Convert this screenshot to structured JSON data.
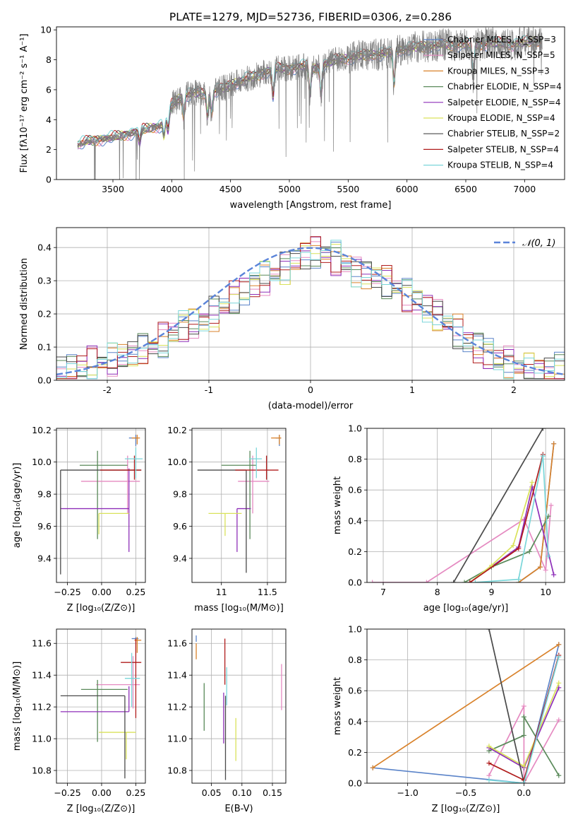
{
  "title": "PLATE=1279, MJD=52736, FIBERID=0306, z=0.286",
  "colors": {
    "Chabrier MILES": "#5b84c9",
    "Salpeter MILES": "#e58ac1",
    "Kroupa MILES": "#d9822b",
    "Chabrier ELODIE": "#5a8a5a",
    "Salpeter ELODIE": "#8e2fb8",
    "Kroupa ELODIE": "#d9e25a",
    "Chabrier STELIB": "#4a4a4a",
    "Salpeter STELIB": "#b01c1c",
    "Kroupa STELIB": "#7ad6d9",
    "data": "#808080",
    "normal": "#5b84d9"
  },
  "chart_data": [
    {
      "id": "spectrum",
      "type": "line",
      "xlabel": "wavelength [Angstrom, rest frame]",
      "ylabel": "Flux [fλ10⁻¹⁷ erg cm⁻² s⁻¹ A⁻¹]",
      "xlim": [
        3020,
        7340
      ],
      "ylim": [
        0,
        10.2
      ],
      "xticks": [
        3500,
        4000,
        4500,
        5000,
        5500,
        6000,
        6500,
        7000
      ],
      "yticks": [
        0,
        2,
        4,
        6,
        8,
        10
      ],
      "legend_position": "top-right",
      "legend": [
        "Chabrier MILES, N_SSP=3",
        "Salpeter MILES, N_SSP=5",
        "Kroupa MILES, N_SSP=3",
        "Chabrier ELODIE, N_SSP=4",
        "Salpeter ELODIE, N_SSP=4",
        "Kroupa ELODIE, N_SSP=4",
        "Chabrier STELIB, N_SSP=2",
        "Salpeter STELIB, N_SSP=4",
        "Kroupa STELIB, N_SSP=4"
      ],
      "continuum": {
        "x": [
          3200,
          3300,
          3400,
          3500,
          3600,
          3700,
          3800,
          3900,
          3950,
          4000,
          4100,
          4200,
          4300,
          4400,
          4500,
          4600,
          4700,
          4800,
          4900,
          5000,
          5100,
          5200,
          5300,
          5400,
          5500,
          5600,
          5700,
          5800,
          5900,
          6000,
          6100,
          6200,
          6300,
          6400,
          6500,
          6600,
          6700,
          6800,
          6900,
          7000,
          7150
        ],
        "y": [
          2.3,
          2.6,
          2.7,
          2.8,
          3.0,
          3.2,
          3.4,
          3.6,
          4.0,
          5.0,
          5.6,
          5.8,
          5.7,
          6.0,
          6.3,
          6.6,
          6.9,
          7.2,
          7.4,
          7.4,
          7.6,
          7.4,
          7.7,
          8.0,
          8.1,
          8.3,
          8.3,
          8.4,
          8.6,
          8.7,
          8.9,
          8.9,
          9.0,
          9.0,
          9.0,
          9.0,
          9.1,
          9.1,
          9.0,
          9.2,
          9.2
        ]
      }
    },
    {
      "id": "residuals",
      "type": "histogram",
      "xlabel": "(data-model)/error",
      "ylabel": "Normed distribution",
      "xlim": [
        -2.5,
        2.5
      ],
      "ylim": [
        0,
        0.46
      ],
      "xticks": [
        -2,
        -1,
        0,
        1,
        2
      ],
      "yticks": [
        0.0,
        0.1,
        0.2,
        0.3,
        0.4
      ],
      "legend": [
        "𝒩(0, 1)"
      ],
      "reference": {
        "name": "N(0,1)",
        "mean": 0,
        "sigma": 1
      },
      "bin_edges_start": -2.5,
      "bin_width": 0.1,
      "envelope": [
        0.02,
        0.03,
        0.04,
        0.05,
        0.055,
        0.06,
        0.07,
        0.08,
        0.09,
        0.1,
        0.12,
        0.14,
        0.16,
        0.17,
        0.18,
        0.2,
        0.22,
        0.25,
        0.27,
        0.29,
        0.31,
        0.32,
        0.34,
        0.36,
        0.38,
        0.39,
        0.38,
        0.37,
        0.35,
        0.33,
        0.32,
        0.31,
        0.3,
        0.28,
        0.26,
        0.24,
        0.22,
        0.2,
        0.17,
        0.15,
        0.12,
        0.1,
        0.08,
        0.06,
        0.05,
        0.04,
        0.035,
        0.03,
        0.03,
        0.03
      ]
    },
    {
      "id": "age-vs-Z",
      "type": "scatter",
      "xlabel": "Z [log₁₀(Z/Z⊙)]",
      "ylabel": "age  [log₁₀(age/yr)]",
      "xlim": [
        -0.33,
        0.32
      ],
      "ylim": [
        9.25,
        10.21
      ],
      "xticks": [
        -0.25,
        0.0,
        0.25
      ],
      "xticklabels": [
        "−0.25",
        "0.00",
        "0.25"
      ],
      "yticks": [
        9.4,
        9.6,
        9.8,
        10.0,
        10.2
      ],
      "points": [
        {
          "model": "Chabrier MILES",
          "x": 0.25,
          "y": 10.15,
          "xerr": [
            0.05,
            0.02
          ],
          "yerr": [
            0.05,
            0.02
          ]
        },
        {
          "model": "Salpeter MILES",
          "x": 0.19,
          "y": 9.88,
          "xerr": [
            0.34,
            0.09
          ],
          "yerr": [
            0.2,
            0.16
          ]
        },
        {
          "model": "Kroupa MILES",
          "x": 0.26,
          "y": 10.15,
          "xerr": [
            0.04,
            0.02
          ],
          "yerr": [
            0.04,
            0.02
          ]
        },
        {
          "model": "Chabrier ELODIE",
          "x": -0.03,
          "y": 9.98,
          "xerr": [
            0.13,
            0.22
          ],
          "yerr": [
            0.46,
            0.09
          ]
        },
        {
          "model": "Salpeter ELODIE",
          "x": 0.2,
          "y": 9.71,
          "xerr": [
            0.5,
            0.0
          ],
          "yerr": [
            0.27,
            0.25
          ]
        },
        {
          "model": "Kroupa ELODIE",
          "x": -0.02,
          "y": 9.68,
          "xerr": [
            0.0,
            0.22
          ],
          "yerr": [
            0.13,
            0.0
          ]
        },
        {
          "model": "Chabrier STELIB",
          "x": -0.3,
          "y": 9.95,
          "xerr": [
            0.0,
            0.59
          ],
          "yerr": [
            0.65,
            0.0
          ]
        },
        {
          "model": "Salpeter STELIB",
          "x": 0.24,
          "y": 9.95,
          "xerr": [
            0.25,
            0.05
          ],
          "yerr": [
            0.06,
            0.09
          ]
        },
        {
          "model": "Kroupa STELIB",
          "x": 0.25,
          "y": 10.02,
          "xerr": [
            0.08,
            0.05
          ],
          "yerr": [
            0.12,
            0.07
          ]
        }
      ]
    },
    {
      "id": "age-vs-mass",
      "type": "scatter",
      "xlabel": "mass [log₁₀(M/M⊙)]",
      "ylabel": "",
      "xlim": [
        10.68,
        11.7
      ],
      "ylim": [
        9.25,
        10.21
      ],
      "xticks": [
        11.0,
        11.5
      ],
      "yticks": [
        9.4,
        9.6,
        9.8,
        10.0,
        10.2
      ],
      "points": [
        {
          "model": "Chabrier MILES",
          "x": 11.63,
          "y": 10.15,
          "xerr": [
            0.04,
            0.02
          ],
          "yerr": [
            0.05,
            0.02
          ]
        },
        {
          "model": "Salpeter MILES",
          "x": 11.34,
          "y": 9.88,
          "xerr": [
            0.16,
            0.18
          ],
          "yerr": [
            0.2,
            0.16
          ]
        },
        {
          "model": "Kroupa MILES",
          "x": 11.63,
          "y": 10.15,
          "xerr": [
            0.09,
            0.02
          ],
          "yerr": [
            0.04,
            0.02
          ]
        },
        {
          "model": "Chabrier ELODIE",
          "x": 11.31,
          "y": 9.98,
          "xerr": [
            0.31,
            0.07
          ],
          "yerr": [
            0.46,
            0.09
          ]
        },
        {
          "model": "Salpeter ELODIE",
          "x": 11.17,
          "y": 9.71,
          "xerr": [
            0.0,
            0.15
          ],
          "yerr": [
            0.27,
            0.0
          ]
        },
        {
          "model": "Kroupa ELODIE",
          "x": 11.04,
          "y": 9.68,
          "xerr": [
            0.18,
            0.18
          ],
          "yerr": [
            0.14,
            0.0
          ]
        },
        {
          "model": "Chabrier STELIB",
          "x": 11.27,
          "y": 9.95,
          "xerr": [
            0.53,
            0.0
          ],
          "yerr": [
            0.64,
            0.0
          ]
        },
        {
          "model": "Salpeter STELIB",
          "x": 11.49,
          "y": 9.95,
          "xerr": [
            0.34,
            0.13
          ],
          "yerr": [
            0.06,
            0.09
          ]
        },
        {
          "model": "Kroupa STELIB",
          "x": 11.38,
          "y": 10.02,
          "xerr": [
            0.08,
            0.06
          ],
          "yerr": [
            0.12,
            0.07
          ]
        }
      ]
    },
    {
      "id": "weight-vs-age",
      "type": "line",
      "xlabel": "age  [log₁₀(age/yr)]",
      "ylabel": "mass weight",
      "xlim": [
        6.7,
        10.35
      ],
      "ylim": [
        0,
        1
      ],
      "xticks": [
        7,
        8,
        9,
        10
      ],
      "yticks": [
        0.0,
        0.2,
        0.4,
        0.6,
        0.8,
        1.0
      ],
      "series": [
        {
          "model": "Chabrier MILES",
          "x": [
            9.5,
            9.9,
            10.15
          ],
          "y": [
            0.0,
            0.1,
            0.9
          ]
        },
        {
          "model": "Salpeter MILES",
          "x": [
            6.8,
            7.8,
            9.6,
            10.0,
            10.1
          ],
          "y": [
            0.0,
            0.0,
            0.41,
            0.08,
            0.5
          ]
        },
        {
          "model": "Kroupa MILES",
          "x": [
            9.5,
            9.9,
            10.15
          ],
          "y": [
            0.0,
            0.1,
            0.9
          ]
        },
        {
          "model": "Chabrier ELODIE",
          "x": [
            8.5,
            9.0,
            9.7,
            10.05
          ],
          "y": [
            0.0,
            0.1,
            0.2,
            0.43
          ]
        },
        {
          "model": "Salpeter ELODIE",
          "x": [
            8.6,
            9.5,
            9.75,
            10.15
          ],
          "y": [
            0.0,
            0.23,
            0.62,
            0.05
          ]
        },
        {
          "model": "Kroupa ELODIE",
          "x": [
            8.6,
            9.0,
            9.4,
            9.75
          ],
          "y": [
            0.0,
            0.11,
            0.24,
            0.65
          ]
        },
        {
          "model": "Chabrier STELIB",
          "x": [
            8.3,
            9.95
          ],
          "y": [
            0.0,
            1.0
          ]
        },
        {
          "model": "Salpeter STELIB",
          "x": [
            8.6,
            9.5,
            9.95
          ],
          "y": [
            0.0,
            0.22,
            0.83
          ]
        },
        {
          "model": "Kroupa STELIB",
          "x": [
            8.7,
            9.5,
            9.95,
            10.05
          ],
          "y": [
            0.0,
            0.02,
            0.82,
            0.17
          ]
        }
      ]
    },
    {
      "id": "mass-vs-Z",
      "type": "scatter",
      "xlabel": "Z [log₁₀(Z/Z⊙)]",
      "ylabel": "mass [log₁₀(M/M⊙)]",
      "xlim": [
        -0.33,
        0.32
      ],
      "ylim": [
        10.72,
        11.69
      ],
      "xticks": [
        -0.25,
        0.0,
        0.25
      ],
      "xticklabels": [
        "−0.25",
        "0.00",
        "0.25"
      ],
      "yticks": [
        10.8,
        11.0,
        11.2,
        11.4,
        11.6
      ],
      "points": [
        {
          "model": "Chabrier MILES",
          "x": 0.25,
          "y": 11.63,
          "xerr": [
            0.03,
            0.02
          ],
          "yerr": [
            0.01,
            0.01
          ]
        },
        {
          "model": "Salpeter MILES",
          "x": 0.23,
          "y": 11.34,
          "xerr": [
            0.27,
            0.05
          ],
          "yerr": [
            0.15,
            0.18
          ]
        },
        {
          "model": "Kroupa MILES",
          "x": 0.26,
          "y": 11.62,
          "xerr": [
            0.02,
            0.03
          ],
          "yerr": [
            0.08,
            0.02
          ]
        },
        {
          "model": "Chabrier ELODIE",
          "x": -0.03,
          "y": 11.31,
          "xerr": [
            0.12,
            0.22
          ],
          "yerr": [
            0.33,
            0.06
          ]
        },
        {
          "model": "Salpeter ELODIE",
          "x": 0.2,
          "y": 11.17,
          "xerr": [
            0.5,
            0.0
          ],
          "yerr": [
            0.0,
            0.16
          ]
        },
        {
          "model": "Kroupa ELODIE",
          "x": 0.18,
          "y": 11.04,
          "xerr": [
            0.2,
            0.07
          ],
          "yerr": [
            0.17,
            0.0
          ]
        },
        {
          "model": "Chabrier STELIB",
          "x": 0.17,
          "y": 11.27,
          "xerr": [
            0.47,
            0.0
          ],
          "yerr": [
            0.52,
            0.0
          ]
        },
        {
          "model": "Salpeter STELIB",
          "x": 0.25,
          "y": 11.48,
          "xerr": [
            0.11,
            0.04
          ],
          "yerr": [
            0.35,
            0.15
          ]
        },
        {
          "model": "Kroupa STELIB",
          "x": 0.22,
          "y": 11.38,
          "xerr": [
            0.05,
            0.06
          ],
          "yerr": [
            0.18,
            0.16
          ]
        }
      ]
    },
    {
      "id": "mass-vs-ebv",
      "type": "scatter",
      "xlabel": "E(B-V)",
      "ylabel": "",
      "xlim": [
        0.018,
        0.172
      ],
      "ylim": [
        10.72,
        11.69
      ],
      "xticks": [
        0.05,
        0.1,
        0.15
      ],
      "xticklabels": [
        "0.05",
        "0.10",
        "0.15"
      ],
      "yticks": [
        10.8,
        11.0,
        11.2,
        11.4,
        11.6
      ],
      "points": [
        {
          "model": "Chabrier MILES",
          "x": 0.025,
          "y": 11.63,
          "yerr": [
            0.02,
            0.02
          ]
        },
        {
          "model": "Salpeter MILES",
          "x": 0.165,
          "y": 11.34,
          "yerr": [
            0.16,
            0.13
          ]
        },
        {
          "model": "Kroupa MILES",
          "x": 0.025,
          "y": 11.56,
          "yerr": [
            0.06,
            0.04
          ]
        },
        {
          "model": "Chabrier ELODIE",
          "x": 0.038,
          "y": 11.2,
          "yerr": [
            0.15,
            0.15
          ]
        },
        {
          "model": "Salpeter ELODIE",
          "x": 0.07,
          "y": 11.1,
          "yerr": [
            0.13,
            0.19
          ]
        },
        {
          "model": "Kroupa ELODIE",
          "x": 0.09,
          "y": 10.99,
          "yerr": [
            0.13,
            0.14
          ]
        },
        {
          "model": "Chabrier STELIB",
          "x": 0.073,
          "y": 11.0,
          "yerr": [
            0.26,
            0.27
          ]
        },
        {
          "model": "Salpeter STELIB",
          "x": 0.072,
          "y": 11.48,
          "yerr": [
            0.14,
            0.15
          ]
        },
        {
          "model": "Kroupa STELIB",
          "x": 0.075,
          "y": 11.34,
          "yerr": [
            0.13,
            0.11
          ]
        }
      ]
    },
    {
      "id": "weight-vs-Z",
      "type": "line",
      "xlabel": "Z [log₁₀(Z/Z⊙)]",
      "ylabel": "mass weight",
      "xlim": [
        -1.35,
        0.35
      ],
      "ylim": [
        0,
        1
      ],
      "xticks": [
        -1.0,
        -0.5,
        0.0
      ],
      "xticklabels": [
        "−1.0",
        "−0.5",
        "0.0"
      ],
      "yticks": [
        0.0,
        0.2,
        0.4,
        0.6,
        0.8,
        1.0
      ],
      "series": [
        {
          "model": "Chabrier MILES",
          "x": [
            -1.3,
            0.0,
            0.3
          ],
          "y": [
            0.1,
            0.0,
            0.9
          ]
        },
        {
          "model": "Salpeter MILES",
          "x": [
            -0.3,
            0.0,
            0.0,
            0.3
          ],
          "y": [
            0.05,
            0.5,
            0.0,
            0.41
          ]
        },
        {
          "model": "Kroupa MILES",
          "x": [
            -1.3,
            0.3
          ],
          "y": [
            0.1,
            0.9
          ]
        },
        {
          "model": "Chabrier ELODIE",
          "x": [
            -0.3,
            0.0,
            0.0,
            0.3
          ],
          "y": [
            0.21,
            0.31,
            0.43,
            0.05
          ]
        },
        {
          "model": "Salpeter ELODIE",
          "x": [
            -0.3,
            0.0,
            0.3
          ],
          "y": [
            0.23,
            0.1,
            0.62
          ]
        },
        {
          "model": "Kroupa ELODIE",
          "x": [
            -0.3,
            0.0,
            0.3
          ],
          "y": [
            0.24,
            0.11,
            0.65
          ]
        },
        {
          "model": "Chabrier STELIB",
          "x": [
            -0.3,
            0.0
          ],
          "y": [
            1.0,
            0.0
          ]
        },
        {
          "model": "Salpeter STELIB",
          "x": [
            -0.3,
            0.0,
            0.3
          ],
          "y": [
            0.13,
            0.02,
            0.83
          ]
        },
        {
          "model": "Kroupa STELIB",
          "x": [
            -0.3,
            0.0,
            0.3
          ],
          "y": [
            0.02,
            0.0,
            0.82
          ]
        }
      ]
    }
  ]
}
